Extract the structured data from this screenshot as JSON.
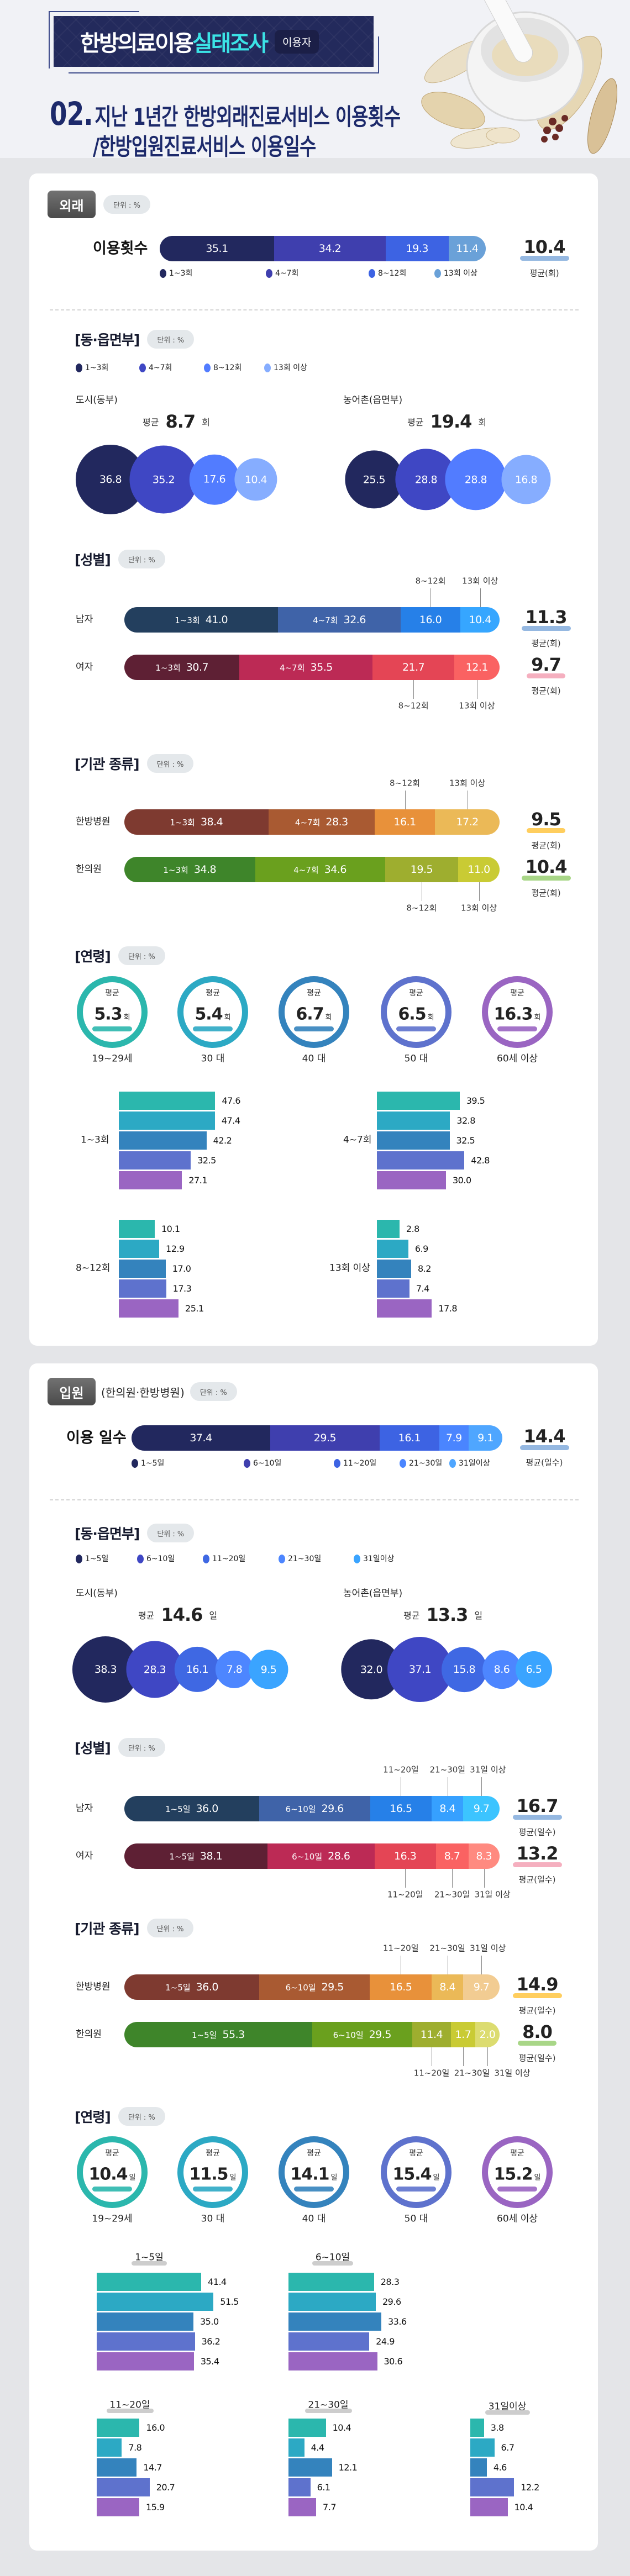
{
  "header": {
    "title_white": "한방의료이용",
    "title_cyan": "실태조사",
    "badge": "이용자",
    "heading_num": "02.",
    "heading_line1": "지난 1년간 한방외래진료서비스 이용횟수",
    "heading_line2": "/한방입원진료서비스 이용일수"
  },
  "outpatient": {
    "badge": "외래",
    "unit": "단위 : %",
    "overall": {
      "label": "이용횟수",
      "colors": [
        "#22285e",
        "#3f3fae",
        "#3d63e3",
        "#6aa1d8"
      ],
      "segments": [
        {
          "label": "1~3회",
          "value": "35.1"
        },
        {
          "label": "4~7회",
          "value": "34.2"
        },
        {
          "label": "8~12회",
          "value": "19.3"
        },
        {
          "label": "13회 이상",
          "value": "11.4"
        }
      ],
      "avg": "10.4",
      "avg_label": "평균(회)",
      "avg_color": "#8ab0de"
    },
    "region": {
      "title": "[동·읍면부]",
      "unit": "단위 : %",
      "legend": [
        "1~3회",
        "4~7회",
        "8~12회",
        "13회 이상"
      ],
      "colors": [
        "#22285e",
        "#3f47c4",
        "#527cff",
        "#86adff"
      ],
      "groups": [
        {
          "name": "도시(동부)",
          "avg_prefix": "평균",
          "avg": "8.7",
          "avg_unit": "회",
          "values": [
            "36.8",
            "35.2",
            "17.6",
            "10.4"
          ]
        },
        {
          "name": "농어촌(읍면부)",
          "avg_prefix": "평균",
          "avg": "19.4",
          "avg_unit": "회",
          "values": [
            "25.5",
            "28.8",
            "28.8",
            "16.8"
          ]
        }
      ]
    },
    "gender": {
      "title": "[성별]",
      "unit": "단위 : %",
      "rows": [
        {
          "label": "남자",
          "colors": [
            "#233f5e",
            "#3f63a8",
            "#2680e8",
            "#36a6ff"
          ],
          "callout_side": "top",
          "segments": [
            {
              "label": "1~3회",
              "value": "41.0"
            },
            {
              "label": "4~7회",
              "value": "32.6"
            },
            {
              "label": "8~12회",
              "value": "16.0"
            },
            {
              "label": "13회 이상",
              "value": "10.4"
            }
          ],
          "avg": "11.3",
          "avg_label": "평균(회)",
          "avg_color": "#8ab0de"
        },
        {
          "label": "여자",
          "colors": [
            "#5e2034",
            "#bc2a55",
            "#e44555",
            "#fa6262"
          ],
          "callout_side": "bottom",
          "segments": [
            {
              "label": "1~3회",
              "value": "30.7"
            },
            {
              "label": "4~7회",
              "value": "35.5"
            },
            {
              "label": "8~12회",
              "value": "21.7"
            },
            {
              "label": "13회 이상",
              "value": "12.1"
            }
          ],
          "avg": "9.7",
          "avg_label": "평균(회)",
          "avg_color": "#f4a6b8"
        }
      ]
    },
    "institution": {
      "title": "[기관 종류]",
      "unit": "단위 : %",
      "rows": [
        {
          "label": "한방병원",
          "colors": [
            "#7e3a30",
            "#a95a32",
            "#e8913a",
            "#ebb957"
          ],
          "callout_side": "top",
          "segments": [
            {
              "label": "1~3회",
              "value": "38.4"
            },
            {
              "label": "4~7회",
              "value": "28.3"
            },
            {
              "label": "8~12회",
              "value": "16.1"
            },
            {
              "label": "13회 이상",
              "value": "17.2"
            }
          ],
          "avg": "9.5",
          "avg_label": "평균(회)",
          "avg_color": "#ffc94d"
        },
        {
          "label": "한의원",
          "colors": [
            "#3e852a",
            "#6aa01e",
            "#9eae2f",
            "#c9cb34"
          ],
          "callout_side": "bottom",
          "segments": [
            {
              "label": "1~3회",
              "value": "34.8"
            },
            {
              "label": "4~7회",
              "value": "34.6"
            },
            {
              "label": "8~12회",
              "value": "19.5"
            },
            {
              "label": "13회 이상",
              "value": "11.0"
            }
          ],
          "avg": "10.4",
          "avg_label": "평균(회)",
          "avg_color": "#9ed27a"
        }
      ]
    },
    "age": {
      "title": "[연령]",
      "unit": "단위 : %",
      "colors": [
        "#2bb7ad",
        "#2ca9c4",
        "#3483bd",
        "#5e72cd",
        "#9a65c2"
      ],
      "circles": [
        {
          "prefix": "평균",
          "avg": "5.3",
          "unit": "회",
          "label": "19~29세"
        },
        {
          "prefix": "평균",
          "avg": "5.4",
          "unit": "회",
          "label": "30 대"
        },
        {
          "prefix": "평균",
          "avg": "6.7",
          "unit": "회",
          "label": "40 대"
        },
        {
          "prefix": "평균",
          "avg": "6.5",
          "unit": "회",
          "label": "50 대"
        },
        {
          "prefix": "평균",
          "avg": "16.3",
          "unit": "회",
          "label": "60세 이상"
        }
      ],
      "groups": [
        {
          "label": "1~3회",
          "values": [
            "47.6",
            "47.4",
            "42.2",
            "32.5",
            "27.1"
          ]
        },
        {
          "label": "4~7회",
          "values": [
            "39.5",
            "32.8",
            "32.5",
            "42.8",
            "30.0"
          ]
        },
        {
          "label": "8~12회",
          "values": [
            "10.1",
            "12.9",
            "17.0",
            "17.3",
            "25.1"
          ]
        },
        {
          "label": "13회 이상",
          "values": [
            "2.8",
            "6.9",
            "8.2",
            "7.4",
            "17.8"
          ]
        }
      ]
    }
  },
  "inpatient": {
    "badge": "입원",
    "badge_note": "(한의원·한방병원)",
    "unit": "단위 : %",
    "overall": {
      "label": "이용 일수",
      "colors": [
        "#22285e",
        "#3f3fae",
        "#3d63e3",
        "#4a85ff",
        "#4fa6ff"
      ],
      "segments": [
        {
          "label": "1~5일",
          "value": "37.4"
        },
        {
          "label": "6~10일",
          "value": "29.5"
        },
        {
          "label": "11~20일",
          "value": "16.1"
        },
        {
          "label": "21~30일",
          "value": "7.9"
        },
        {
          "label": "31일이상",
          "value": "9.1"
        }
      ],
      "avg": "14.4",
      "avg_label": "평균(일수)",
      "avg_color": "#8ab0de"
    },
    "region": {
      "title": "[동·읍면부]",
      "unit": "단위 : %",
      "legend": [
        "1~5일",
        "6~10일",
        "11~20일",
        "21~30일",
        "31일이상"
      ],
      "colors": [
        "#22285e",
        "#3f47c4",
        "#3f68e3",
        "#4d86ff",
        "#3aa4ff"
      ],
      "groups": [
        {
          "name": "도시(동부)",
          "avg_prefix": "평균",
          "avg": "14.6",
          "avg_unit": "일",
          "values": [
            "38.3",
            "28.3",
            "16.1",
            "7.8",
            "9.5"
          ]
        },
        {
          "name": "농어촌(읍면부)",
          "avg_prefix": "평균",
          "avg": "13.3",
          "avg_unit": "일",
          "values": [
            "32.0",
            "37.1",
            "15.8",
            "8.6",
            "6.5"
          ]
        }
      ]
    },
    "gender": {
      "title": "[성별]",
      "unit": "단위 : %",
      "rows": [
        {
          "label": "남자",
          "colors": [
            "#233f5e",
            "#3f63a8",
            "#2680e8",
            "#36a0ff",
            "#3cc4ff"
          ],
          "callout_side": "top",
          "segments": [
            {
              "label": "1~5일",
              "value": "36.0"
            },
            {
              "label": "6~10일",
              "value": "29.6"
            },
            {
              "label": "11~20일",
              "value": "16.5"
            },
            {
              "label": "21~30일",
              "value": "8.4"
            },
            {
              "label": "31일 이상",
              "value": "9.7"
            }
          ],
          "avg": "16.7",
          "avg_label": "평균(일수)",
          "avg_color": "#8ab0de"
        },
        {
          "label": "여자",
          "colors": [
            "#5e2034",
            "#bc2a55",
            "#e44555",
            "#fa6262",
            "#ff8a80"
          ],
          "callout_side": "bottom",
          "segments": [
            {
              "label": "1~5일",
              "value": "38.1"
            },
            {
              "label": "6~10일",
              "value": "28.6"
            },
            {
              "label": "11~20일",
              "value": "16.3"
            },
            {
              "label": "21~30일",
              "value": "8.7"
            },
            {
              "label": "31일 이상",
              "value": "8.3"
            }
          ],
          "avg": "13.2",
          "avg_label": "평균(일수)",
          "avg_color": "#f4a6b8"
        }
      ]
    },
    "institution": {
      "title": "[기관 종류]",
      "unit": "단위 : %",
      "rows": [
        {
          "label": "한방병원",
          "colors": [
            "#7e3a30",
            "#a95a32",
            "#e8913a",
            "#ebb957",
            "#f2cc92"
          ],
          "callout_side": "top",
          "segments": [
            {
              "label": "1~5일",
              "value": "36.0"
            },
            {
              "label": "6~10일",
              "value": "29.5"
            },
            {
              "label": "11~20일",
              "value": "16.5"
            },
            {
              "label": "21~30일",
              "value": "8.4"
            },
            {
              "label": "31일 이상",
              "value": "9.7"
            }
          ],
          "avg": "14.9",
          "avg_label": "평균(일수)",
          "avg_color": "#ffc94d"
        },
        {
          "label": "한의원",
          "colors": [
            "#3e852a",
            "#6aa01e",
            "#9eae2f",
            "#c9cb34",
            "#dcdc70"
          ],
          "callout_side": "bottom",
          "segments": [
            {
              "label": "1~5일",
              "value": "55.3"
            },
            {
              "label": "6~10일",
              "value": "29.5"
            },
            {
              "label": "11~20일",
              "value": "11.4"
            },
            {
              "label": "21~30일",
              "value": "1.7"
            },
            {
              "label": "31일 이상",
              "value": "2.0"
            }
          ],
          "avg": "8.0",
          "avg_label": "평균(일수)",
          "avg_color": "#9ed27a"
        }
      ]
    },
    "age": {
      "title": "[연령]",
      "unit": "단위 : %",
      "colors": [
        "#2bb7ad",
        "#2ca9c4",
        "#3483bd",
        "#5e72cd",
        "#9a65c2"
      ],
      "circles": [
        {
          "prefix": "평균",
          "avg": "10.4",
          "unit": "일",
          "label": "19~29세"
        },
        {
          "prefix": "평균",
          "avg": "11.5",
          "unit": "일",
          "label": "30 대"
        },
        {
          "prefix": "평균",
          "avg": "14.1",
          "unit": "일",
          "label": "40 대"
        },
        {
          "prefix": "평균",
          "avg": "15.4",
          "unit": "일",
          "label": "50 대"
        },
        {
          "prefix": "평균",
          "avg": "15.2",
          "unit": "일",
          "label": "60세 이상"
        }
      ],
      "groups": [
        {
          "label": "1~5일",
          "values": [
            "41.4",
            "51.5",
            "35.0",
            "36.2",
            "35.4"
          ]
        },
        {
          "label": "6~10일",
          "values": [
            "28.3",
            "29.6",
            "33.6",
            "24.9",
            "30.6"
          ]
        },
        {
          "label": "11~20일",
          "values": [
            "16.0",
            "7.8",
            "14.7",
            "20.7",
            "15.9"
          ]
        },
        {
          "label": "21~30일",
          "values": [
            "10.4",
            "4.4",
            "12.1",
            "6.1",
            "7.7"
          ]
        },
        {
          "label": "31일이상",
          "values": [
            "3.8",
            "6.7",
            "4.6",
            "12.2",
            "10.4"
          ]
        }
      ]
    }
  }
}
